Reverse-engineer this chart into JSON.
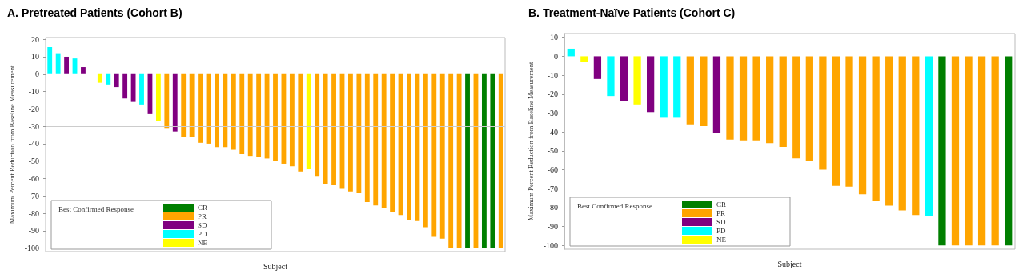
{
  "chart_data": [
    {
      "type": "bar",
      "title": "A. Pretreated Patients (Cohort B)",
      "xlabel": "Subject",
      "ylabel": "Maximum Percent Reduction from Baseline Measurement",
      "legend_title": "Best Confirmed Response",
      "legend": "bottom left",
      "grid": false,
      "categories": [
        null,
        null,
        null,
        null,
        null,
        null,
        null,
        null,
        null,
        null,
        null,
        null,
        null,
        null,
        null,
        null,
        null,
        null,
        null,
        null,
        null,
        null,
        null,
        null,
        null,
        null,
        null,
        null,
        null,
        null,
        null,
        null,
        null,
        null,
        null,
        null,
        null,
        null,
        null,
        null,
        null,
        null,
        null,
        null,
        null,
        null,
        null,
        null,
        null,
        null,
        null,
        null,
        null,
        null,
        null
      ],
      "ylim": [
        -102,
        21
      ],
      "yticks": [
        -100,
        -90,
        -80,
        -70,
        -60,
        -50,
        -40,
        -30,
        -20,
        -10,
        0,
        10,
        20
      ],
      "ref_lines": [
        {
          "axis": "y",
          "value": -30,
          "color": "#cccccc"
        }
      ],
      "series": [
        {
          "name": "CR",
          "color": "#007f00",
          "values": [
            null,
            null,
            null,
            null,
            null,
            null,
            null,
            null,
            null,
            null,
            null,
            null,
            null,
            null,
            null,
            null,
            null,
            null,
            null,
            null,
            null,
            null,
            null,
            null,
            null,
            null,
            null,
            null,
            null,
            null,
            null,
            null,
            null,
            null,
            null,
            null,
            null,
            null,
            null,
            null,
            null,
            null,
            null,
            null,
            null,
            null,
            null,
            null,
            null,
            null,
            -100,
            null,
            -100,
            -100,
            null
          ]
        },
        {
          "name": "PR",
          "color": "#ffa500",
          "values": [
            null,
            null,
            null,
            null,
            null,
            null,
            null,
            null,
            null,
            null,
            null,
            null,
            null,
            null,
            -31,
            null,
            -36,
            -36,
            -39.5,
            -40,
            -42,
            -42,
            -43.5,
            -46,
            -47,
            -47.5,
            -48.5,
            -50,
            -51.5,
            -53,
            -56,
            null,
            -58.5,
            -63,
            -63.5,
            -65.5,
            -67.5,
            -68,
            -73.5,
            -75.5,
            -77,
            -79.5,
            -81,
            -84,
            -84.5,
            -88,
            -93.5,
            -94.5,
            -100,
            -100,
            null,
            -100,
            null,
            null,
            -100
          ]
        },
        {
          "name": "SD",
          "color": "#800080",
          "values": [
            null,
            null,
            10,
            null,
            4,
            null,
            null,
            null,
            -7.5,
            -14,
            -16,
            null,
            -23,
            null,
            null,
            -33,
            null,
            null,
            null,
            null,
            null,
            null,
            null,
            null,
            null,
            null,
            null,
            null,
            null,
            null,
            null,
            null,
            null,
            null,
            null,
            null,
            null,
            null,
            null,
            null,
            null,
            null,
            null,
            null,
            null,
            null,
            null,
            null,
            null,
            null,
            null,
            null,
            null,
            null,
            null
          ]
        },
        {
          "name": "PD",
          "color": "#00ffff",
          "values": [
            15.5,
            12,
            null,
            9,
            null,
            null,
            null,
            -6,
            null,
            null,
            null,
            -17.5,
            null,
            null,
            null,
            null,
            null,
            null,
            null,
            null,
            null,
            null,
            null,
            null,
            null,
            null,
            null,
            null,
            null,
            null,
            null,
            null,
            null,
            null,
            null,
            null,
            null,
            null,
            null,
            null,
            null,
            null,
            null,
            null,
            null,
            null,
            null,
            null,
            null,
            null,
            null,
            null,
            null,
            null,
            null
          ]
        },
        {
          "name": "NE",
          "color": "#ffff00",
          "values": [
            null,
            null,
            null,
            null,
            null,
            null,
            -5,
            null,
            null,
            null,
            null,
            null,
            null,
            -27,
            null,
            null,
            null,
            null,
            null,
            null,
            null,
            null,
            null,
            null,
            null,
            null,
            null,
            null,
            null,
            null,
            null,
            -54.5,
            null,
            null,
            null,
            null,
            null,
            null,
            null,
            null,
            null,
            null,
            null,
            null,
            null,
            null,
            null,
            null,
            null,
            null,
            null,
            null,
            null,
            null,
            null
          ]
        }
      ]
    },
    {
      "type": "bar",
      "title": "B. Treatment-Naïve Patients (Cohort C)",
      "xlabel": "Subject",
      "ylabel": "Maximum Percent Reduction from Baseline Measurement",
      "legend_title": "Best Confirmed Response",
      "legend": "bottom left",
      "grid": false,
      "categories": [
        null,
        null,
        null,
        null,
        null,
        null,
        null,
        null,
        null,
        null,
        null,
        null,
        null,
        null,
        null,
        null,
        null,
        null,
        null,
        null,
        null,
        null,
        null,
        null,
        null,
        null,
        null,
        null,
        null,
        null,
        null,
        null,
        null,
        null
      ],
      "ylim": [
        -102,
        12
      ],
      "yticks": [
        -100,
        -90,
        -80,
        -70,
        -60,
        -50,
        -40,
        -30,
        -20,
        -10,
        0,
        10
      ],
      "ref_lines": [
        {
          "axis": "y",
          "value": -30,
          "color": "#cccccc"
        }
      ],
      "series": [
        {
          "name": "CR",
          "color": "#007f00",
          "values": [
            null,
            null,
            null,
            null,
            null,
            null,
            null,
            null,
            null,
            null,
            null,
            null,
            null,
            null,
            null,
            null,
            null,
            null,
            null,
            null,
            null,
            null,
            null,
            null,
            null,
            null,
            null,
            null,
            -100,
            null,
            null,
            null,
            null,
            -100
          ]
        },
        {
          "name": "PR",
          "color": "#ffa500",
          "values": [
            null,
            null,
            null,
            null,
            null,
            null,
            null,
            null,
            null,
            -36,
            -37,
            null,
            -44,
            -44.5,
            -44.5,
            -46,
            -48,
            -54,
            -55.5,
            -60,
            -68.5,
            -69,
            -73,
            -76.5,
            -79,
            -81.5,
            -84,
            null,
            null,
            -100,
            -100,
            -100,
            -100,
            null
          ]
        },
        {
          "name": "SD",
          "color": "#800080",
          "values": [
            null,
            null,
            -12,
            null,
            -23.5,
            null,
            -29.5,
            null,
            null,
            null,
            null,
            -40.5,
            null,
            null,
            null,
            null,
            null,
            null,
            null,
            null,
            null,
            null,
            null,
            null,
            null,
            null,
            null,
            null,
            null,
            null,
            null,
            null,
            null,
            null
          ]
        },
        {
          "name": "PD",
          "color": "#00ffff",
          "values": [
            4,
            null,
            null,
            -21,
            null,
            null,
            null,
            -32.5,
            -32.5,
            null,
            null,
            null,
            null,
            null,
            null,
            null,
            null,
            null,
            null,
            null,
            null,
            null,
            null,
            null,
            null,
            null,
            null,
            -84.5,
            null,
            null,
            null,
            null,
            null,
            null
          ]
        },
        {
          "name": "NE",
          "color": "#ffff00",
          "values": [
            null,
            -3,
            null,
            null,
            null,
            -25.5,
            null,
            null,
            null,
            null,
            null,
            null,
            null,
            null,
            null,
            null,
            null,
            null,
            null,
            null,
            null,
            null,
            null,
            null,
            null,
            null,
            null,
            null,
            null,
            null,
            null,
            null,
            null,
            null
          ]
        }
      ]
    }
  ]
}
